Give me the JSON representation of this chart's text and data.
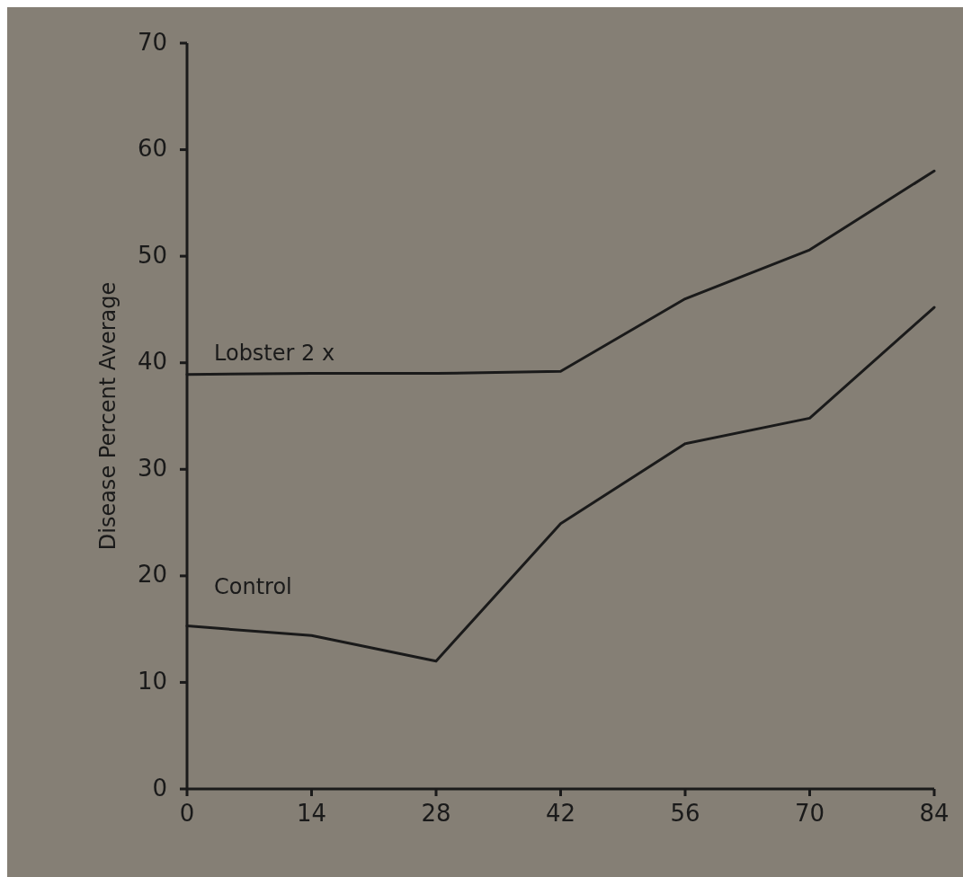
{
  "chart_data": {
    "type": "line",
    "ylabel": "Disease Percent Average",
    "x": [
      0,
      14,
      28,
      42,
      56,
      70,
      84
    ],
    "xlim": [
      0,
      84
    ],
    "xticks": [
      0,
      14,
      28,
      42,
      56,
      70,
      84
    ],
    "ylim": [
      0,
      70
    ],
    "yticks": [
      0,
      10,
      20,
      30,
      40,
      50,
      60,
      70
    ],
    "grid": false,
    "marker": "none",
    "line_style": "solid",
    "series": [
      {
        "name": "Lobster 2 x",
        "color": "#1a1a1a",
        "values": [
          38.9,
          39,
          39,
          39.2,
          46,
          50.6,
          58
        ]
      },
      {
        "name": "Control",
        "color": "#1a1a1a",
        "values": [
          15.3,
          14.4,
          12,
          24.9,
          32.4,
          34.8,
          45.2
        ]
      }
    ]
  }
}
